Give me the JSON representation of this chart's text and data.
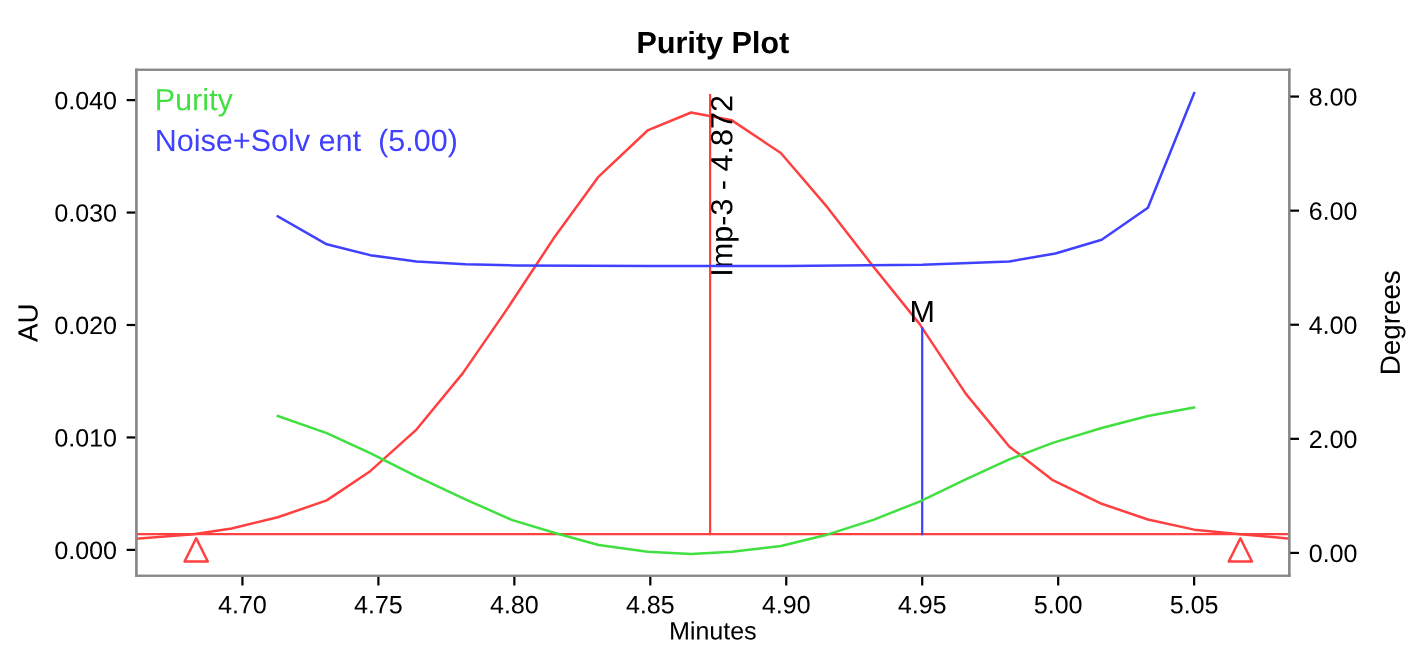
{
  "chart_data": {
    "type": "line",
    "title": "Purity Plot",
    "xlabel": "Minutes",
    "ylabel": "AU",
    "y2label": "Degrees",
    "xlim": [
      4.661,
      5.085
    ],
    "xticks": [
      {
        "value": 4.7,
        "label": "4.70"
      },
      {
        "value": 4.75,
        "label": "4.75"
      },
      {
        "value": 4.8,
        "label": "4.80"
      },
      {
        "value": 4.85,
        "label": "4.85"
      },
      {
        "value": 4.9,
        "label": "4.90"
      },
      {
        "value": 4.95,
        "label": "4.95"
      },
      {
        "value": 5.0,
        "label": "5.00"
      },
      {
        "value": 5.05,
        "label": "5.05"
      }
    ],
    "ylim": [
      -0.0023,
      0.0427
    ],
    "yticks": [
      {
        "value": 0,
        "label": "0.000"
      },
      {
        "value": 0.01,
        "label": "0.010"
      },
      {
        "value": 0.02,
        "label": "0.020"
      },
      {
        "value": 0.03,
        "label": "0.030"
      },
      {
        "value": 0.04,
        "label": "0.040"
      }
    ],
    "y2lim": [
      -0.4,
      8.47
    ],
    "y2ticks": [
      {
        "value": 0,
        "label": "0.00"
      },
      {
        "value": 2,
        "label": "2.00"
      },
      {
        "value": 4,
        "label": "4.00"
      },
      {
        "value": 6,
        "label": "6.00"
      },
      {
        "value": 8,
        "label": "8.00"
      }
    ],
    "legend": "top left",
    "grid": false,
    "marker": "none",
    "series": [
      {
        "color": "#ff4040",
        "x": [
          4.661,
          4.682,
          4.696,
          4.713,
          4.731,
          4.747,
          4.764,
          4.781,
          4.797,
          4.815,
          4.831,
          4.849,
          4.865,
          4.88,
          4.898,
          4.915,
          4.932,
          4.949,
          4.966,
          4.982,
          4.998,
          5.016,
          5.033,
          5.05,
          5.067,
          5.085
        ],
        "values": [
          0.001,
          0.0014,
          0.0019,
          0.0029,
          0.0044,
          0.007,
          0.0107,
          0.0157,
          0.0213,
          0.0279,
          0.0332,
          0.0373,
          0.0389,
          0.0382,
          0.0353,
          0.0305,
          0.0252,
          0.0201,
          0.0139,
          0.0092,
          0.0062,
          0.0041,
          0.0027,
          0.0018,
          0.0014,
          0.001
        ]
      },
      {
        "name": "Purity",
        "axis": "y2",
        "color": "#40e040",
        "x": [
          4.713,
          4.731,
          4.747,
          4.764,
          4.782,
          4.799,
          4.815,
          4.831,
          4.849,
          4.865,
          4.88,
          4.898,
          4.915,
          4.932,
          4.949,
          4.966,
          4.982,
          4.998,
          5.016,
          5.033,
          5.05
        ],
        "values": [
          2.4,
          2.1,
          1.75,
          1.34,
          0.94,
          0.58,
          0.35,
          0.14,
          0.02,
          -0.02,
          0.02,
          0.12,
          0.32,
          0.58,
          0.9,
          1.29,
          1.64,
          1.93,
          2.19,
          2.4,
          2.55
        ]
      },
      {
        "name": "Noise+Solv ent  (5.00)",
        "axis": "y2",
        "color": "#4040ff",
        "x": [
          4.713,
          4.731,
          4.747,
          4.764,
          4.782,
          4.8,
          4.85,
          4.9,
          4.95,
          4.982,
          4.999,
          5.016,
          5.033,
          5.05
        ],
        "values": [
          5.9,
          5.41,
          5.22,
          5.11,
          5.06,
          5.04,
          5.03,
          5.03,
          5.05,
          5.11,
          5.25,
          5.49,
          6.05,
          8.06
        ]
      },
      {
        "type": "scatter",
        "marker": "triangle",
        "color": "#ff4040",
        "x": [
          4.683,
          5.067
        ],
        "values": [
          0.0,
          0.0
        ]
      }
    ],
    "ref_lines": [
      {
        "axis": "y",
        "value": 0.0014,
        "color": "#ff4040"
      },
      {
        "axis": "x",
        "value": 4.872,
        "label": "Imp-3 - 4.872",
        "color": "#ff4040"
      }
    ],
    "annotations": [
      {
        "text": "M",
        "x": 4.95,
        "y": 0.0197
      }
    ]
  }
}
